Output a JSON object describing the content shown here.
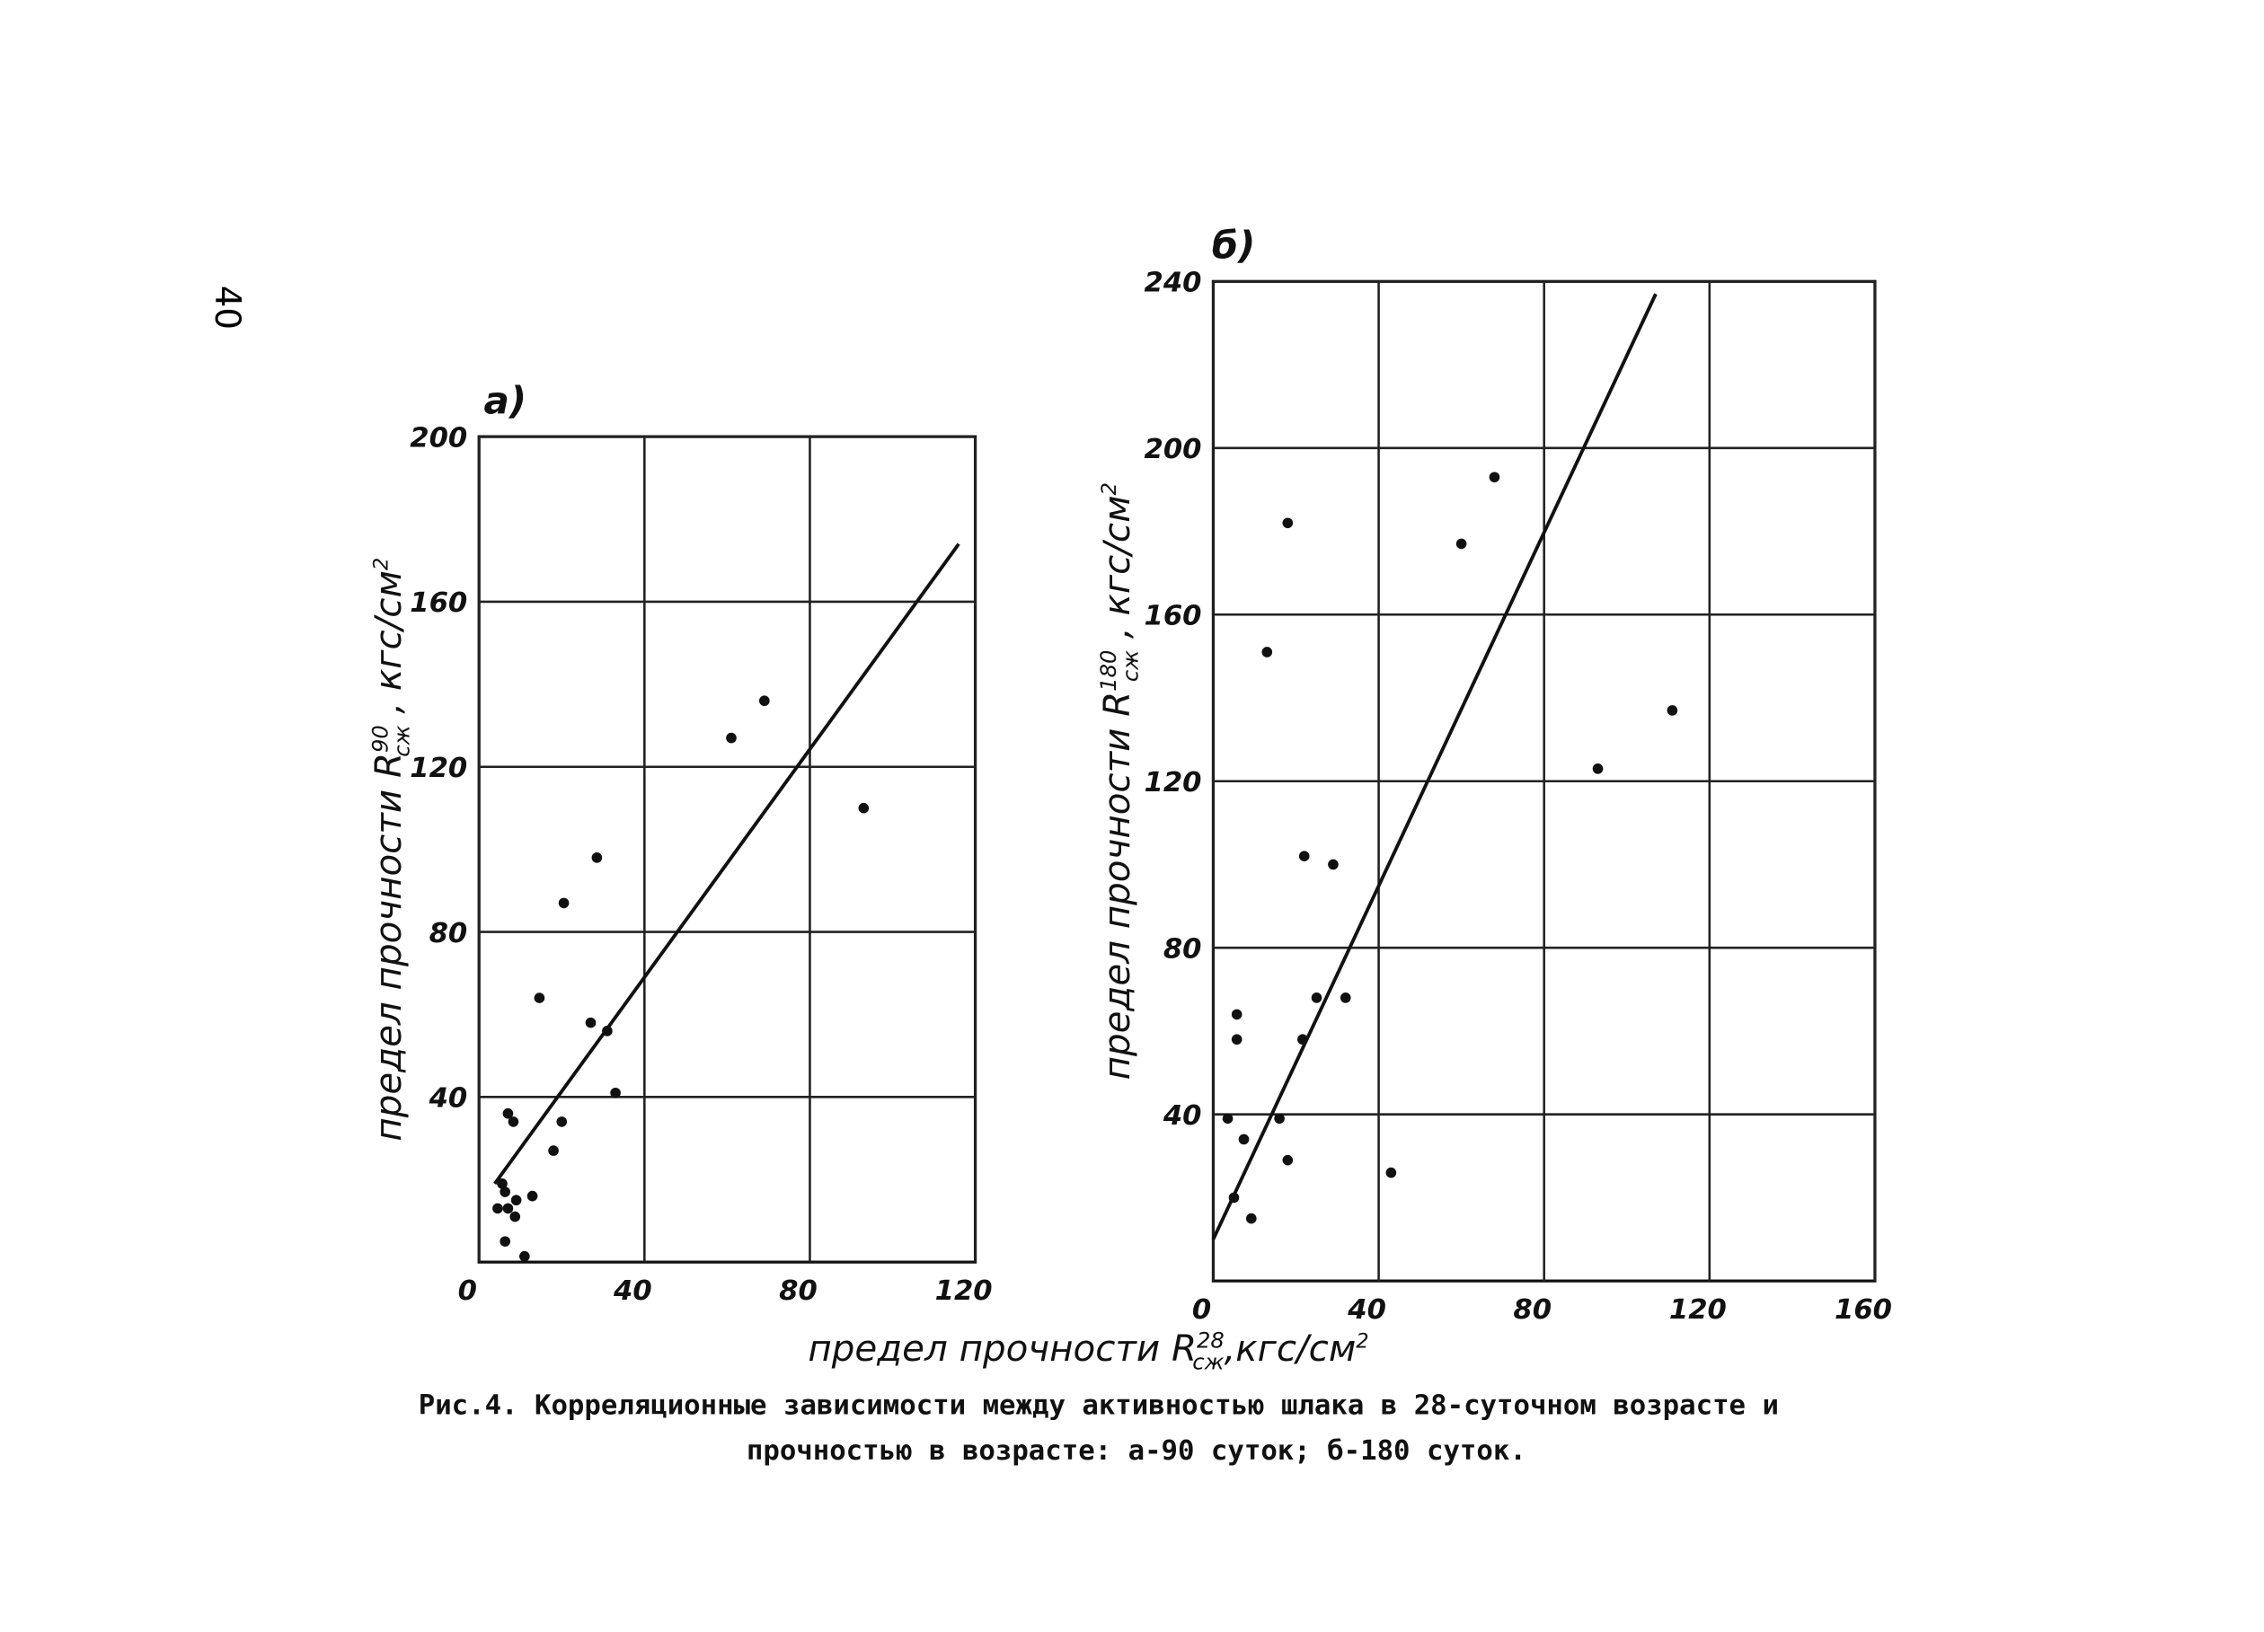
{
  "page_number": "40",
  "xlabel": {
    "text": "предел прочности R",
    "sup": "28",
    "sub": "сж",
    "unit": ",кгс/см",
    "unit_sup": "2"
  },
  "caption": [
    "Рис.4. Корреляционные зависимости между активностью шлака в 28-суточном возрасте и",
    "прочностью в возрасте: а-90 суток; б-180 суток."
  ],
  "chart_data": [
    {
      "type": "scatter",
      "panel_label": "а)",
      "ylabel": {
        "text": "предел прочности R",
        "sup": "90",
        "sub": "сж",
        "unit": " , кгс/см",
        "unit_sup": "2"
      },
      "xlim": [
        0,
        120
      ],
      "ylim": [
        0,
        200
      ],
      "xticks": [
        0,
        40,
        80,
        120
      ],
      "yticks": [
        40,
        80,
        120,
        160,
        200
      ],
      "grid": true,
      "color": "#111111",
      "x": [
        5.6,
        6.3,
        4.5,
        7,
        8.7,
        9,
        12.9,
        6.3,
        11,
        7,
        8.3,
        18,
        20,
        14.6,
        20.5,
        28.5,
        27,
        31,
        33,
        61,
        69,
        93
      ],
      "values": [
        19,
        17,
        13,
        13,
        11,
        15,
        16,
        5,
        1.4,
        36,
        34,
        27,
        34,
        64,
        87,
        98,
        58,
        56,
        41,
        127,
        136,
        110
      ],
      "fit_line": {
        "x": [
          3.8,
          116
        ],
        "values": [
          19,
          174
        ]
      }
    },
    {
      "type": "scatter",
      "panel_label": "б)",
      "ylabel": {
        "text": "предел прочности R",
        "sup": "180",
        "sub": "сж",
        "unit": " , кгс/см",
        "unit_sup": "2"
      },
      "xlim": [
        0,
        160
      ],
      "ylim": [
        0,
        240
      ],
      "xticks": [
        0,
        40,
        80,
        120,
        160
      ],
      "yticks": [
        40,
        80,
        120,
        160,
        200,
        240
      ],
      "grid": true,
      "color": "#111111",
      "x": [
        5.7,
        5.7,
        3.5,
        7.4,
        5,
        9.2,
        18,
        13,
        22,
        29,
        25,
        32,
        21.6,
        16,
        18,
        43,
        60,
        68,
        93,
        111
      ],
      "values": [
        64,
        58,
        39,
        34,
        20,
        15,
        182,
        151,
        102,
        100,
        68,
        68,
        58,
        39,
        29,
        26,
        177,
        193,
        123,
        137
      ],
      "fit_line": {
        "x": [
          0,
          107
        ],
        "values": [
          10,
          237
        ]
      }
    }
  ]
}
